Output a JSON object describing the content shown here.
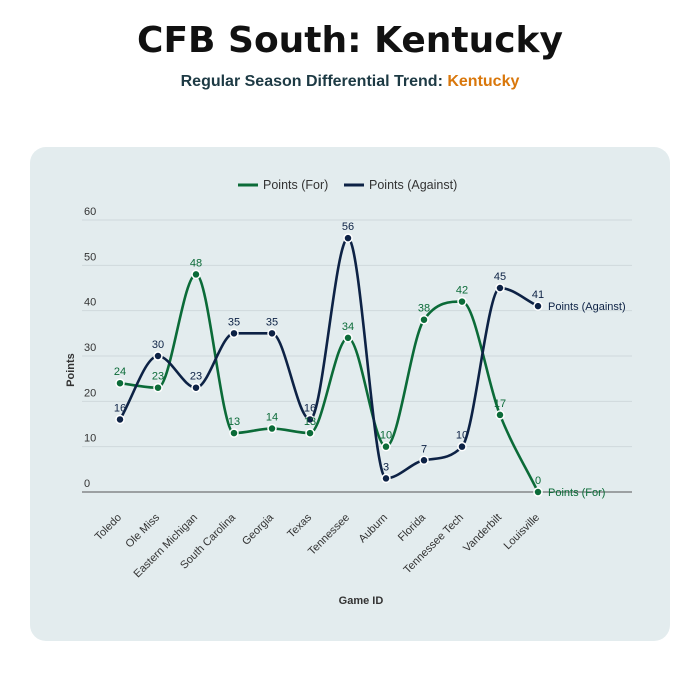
{
  "header": {
    "title": "CFB South: Kentucky",
    "subtitle_prefix": "Regular Season Differential Trend: ",
    "subtitle_team": "Kentucky"
  },
  "colors": {
    "for": "#0b6b38",
    "against": "#0d2245",
    "accent": "#d9770b"
  },
  "chart_data": {
    "type": "line",
    "title": "Regular Season Differential Trend: Kentucky",
    "xlabel": "Game ID",
    "ylabel": "Points",
    "ylim": [
      0,
      60
    ],
    "yticks": [
      0,
      10,
      20,
      30,
      40,
      50,
      60
    ],
    "grid": true,
    "legend_position": "top-center",
    "categories": [
      "Toledo",
      "Ole Miss",
      "Eastern Michigan",
      "South Carolina",
      "Georgia",
      "Texas",
      "Tennessee",
      "Auburn",
      "Florida",
      "Tennessee Tech",
      "Vanderbilt",
      "Louisville"
    ],
    "series": [
      {
        "name": "Points (For)",
        "end_label": "Points (For)",
        "values": [
          24,
          23,
          48,
          13,
          14,
          13,
          34,
          10,
          38,
          42,
          17,
          0
        ]
      },
      {
        "name": "Points (Against)",
        "end_label": "Points (Against)",
        "values": [
          16,
          30,
          23,
          35,
          35,
          16,
          56,
          3,
          7,
          10,
          45,
          41
        ]
      }
    ]
  }
}
